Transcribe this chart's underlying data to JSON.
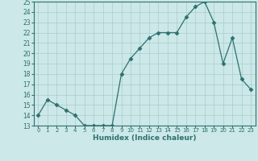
{
  "x": [
    0,
    1,
    2,
    3,
    4,
    5,
    6,
    7,
    8,
    9,
    10,
    11,
    12,
    13,
    14,
    15,
    16,
    17,
    18,
    19,
    20,
    21,
    22,
    23
  ],
  "y": [
    14,
    15.5,
    15,
    14.5,
    14,
    13,
    13,
    13,
    13,
    18,
    19.5,
    20.5,
    21.5,
    22,
    22,
    22,
    23.5,
    24.5,
    25,
    23,
    19,
    21.5,
    17.5,
    16.5
  ],
  "line_color": "#2e7070",
  "marker": "D",
  "marker_size": 2.5,
  "xlabel": "Humidex (Indice chaleur)",
  "ylim": [
    13,
    25
  ],
  "xlim": [
    -0.5,
    23.5
  ],
  "yticks": [
    13,
    14,
    15,
    16,
    17,
    18,
    19,
    20,
    21,
    22,
    23,
    24,
    25
  ],
  "xticks": [
    0,
    1,
    2,
    3,
    4,
    5,
    6,
    7,
    8,
    9,
    10,
    11,
    12,
    13,
    14,
    15,
    16,
    17,
    18,
    19,
    20,
    21,
    22,
    23
  ],
  "bg_color": "#cce8e8",
  "grid_color": "#aacccc",
  "tick_color": "#2e7070"
}
